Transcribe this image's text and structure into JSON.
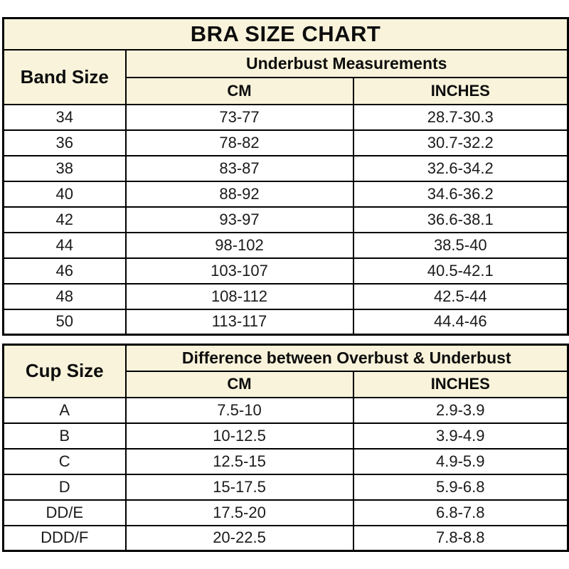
{
  "title": "BRA SIZE CHART",
  "colors": {
    "header_bg": "#F8F3DA",
    "row_bg": "#FFFFFF",
    "border": "#000000",
    "text": "#111111"
  },
  "chart_data": [
    {
      "type": "table",
      "title": "BRA SIZE CHART",
      "corner_header": "Band Size",
      "group_header": "Underbust Measurements",
      "sub_headers": [
        "CM",
        "INCHES"
      ],
      "rows": [
        {
          "size": "34",
          "cm": "73-77",
          "inches": "28.7-30.3"
        },
        {
          "size": "36",
          "cm": "78-82",
          "inches": "30.7-32.2"
        },
        {
          "size": "38",
          "cm": "83-87",
          "inches": "32.6-34.2"
        },
        {
          "size": "40",
          "cm": "88-92",
          "inches": "34.6-36.2"
        },
        {
          "size": "42",
          "cm": "93-97",
          "inches": "36.6-38.1"
        },
        {
          "size": "44",
          "cm": "98-102",
          "inches": "38.5-40"
        },
        {
          "size": "46",
          "cm": "103-107",
          "inches": "40.5-42.1"
        },
        {
          "size": "48",
          "cm": "108-112",
          "inches": "42.5-44"
        },
        {
          "size": "50",
          "cm": "113-117",
          "inches": "44.4-46"
        }
      ]
    },
    {
      "type": "table",
      "corner_header": "Cup Size",
      "group_header": "Difference between Overbust & Underbust",
      "sub_headers": [
        "CM",
        "INCHES"
      ],
      "rows": [
        {
          "size": "A",
          "cm": "7.5-10",
          "inches": "2.9-3.9"
        },
        {
          "size": "B",
          "cm": "10-12.5",
          "inches": "3.9-4.9"
        },
        {
          "size": "C",
          "cm": "12.5-15",
          "inches": "4.9-5.9"
        },
        {
          "size": "D",
          "cm": "15-17.5",
          "inches": "5.9-6.8"
        },
        {
          "size": "DD/E",
          "cm": "17.5-20",
          "inches": "6.8-7.8"
        },
        {
          "size": "DDD/F",
          "cm": "20-22.5",
          "inches": "7.8-8.8"
        }
      ]
    }
  ]
}
